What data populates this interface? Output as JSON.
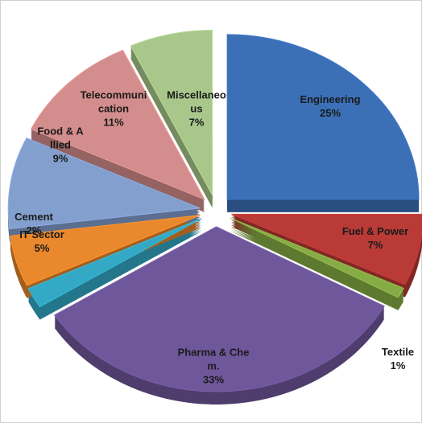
{
  "chart_data": {
    "type": "pie",
    "categories": [
      "Engineering",
      "Fuel & Power",
      "Textile",
      "Pharma & Chem.",
      "Cement",
      "IT Sector",
      "Food & Allied",
      "Telecommunication",
      "Miscellaneous"
    ],
    "values": [
      25,
      7,
      1,
      33,
      2,
      5,
      9,
      11,
      7
    ],
    "value_labels": [
      "25%",
      "7%",
      "1%",
      "33%",
      "2%",
      "5%",
      "9%",
      "11%",
      "7%"
    ],
    "colors": [
      "#3b6fb6",
      "#b93a36",
      "#86ad45",
      "#6f579b",
      "#33a9c6",
      "#e9882c",
      "#839fce",
      "#d38d8c",
      "#a9c78b"
    ]
  }
}
